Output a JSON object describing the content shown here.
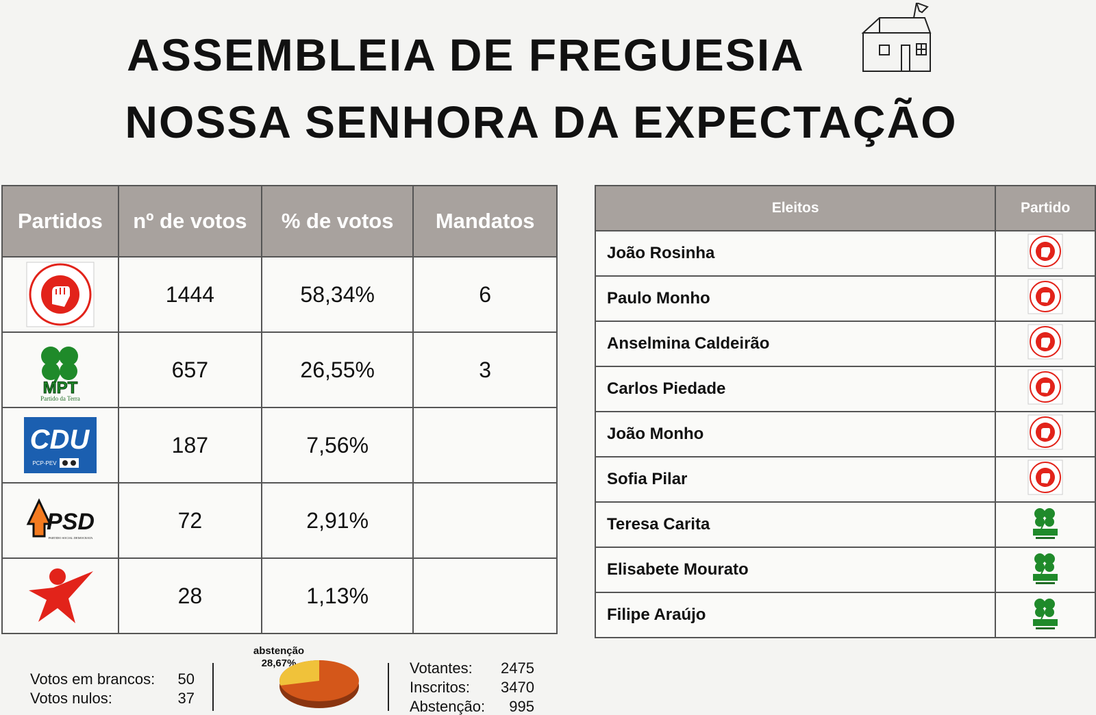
{
  "header": {
    "title_line1": "ASSEMBLEIA DE FREGUESIA",
    "title_line2": "NOSSA SENHORA DA EXPECTAÇÃO"
  },
  "results": {
    "headers": [
      "Partidos",
      "nº de votos",
      "% de votos",
      "Mandatos"
    ],
    "rows": [
      {
        "party_icon": "ps-fist-logo",
        "votes": "1444",
        "percent": "58,34%",
        "mandates": "6"
      },
      {
        "party_icon": "mpt-clover-logo",
        "votes": "657",
        "percent": "26,55%",
        "mandates": "3",
        "logo_text": "MPT",
        "logo_sub": "Partido da Terra"
      },
      {
        "party_icon": "cdu-logo",
        "votes": "187",
        "percent": "7,56%",
        "mandates": "",
        "logo_text": "CDU",
        "logo_sub": "PCP-PEV"
      },
      {
        "party_icon": "psd-logo",
        "votes": "72",
        "percent": "2,91%",
        "mandates": "",
        "logo_text": "PSD",
        "logo_sub": "PARTIDO SOCIAL DEMOCRATA"
      },
      {
        "party_icon": "be-star-logo",
        "votes": "28",
        "percent": "1,13%",
        "mandates": ""
      }
    ]
  },
  "elected": {
    "headers": [
      "Eleitos",
      "Partido"
    ],
    "rows": [
      {
        "name": "João Rosinha",
        "party": "ps"
      },
      {
        "name": "Paulo Monho",
        "party": "ps"
      },
      {
        "name": "Anselmina Caldeirão",
        "party": "ps"
      },
      {
        "name": "Carlos Piedade",
        "party": "ps"
      },
      {
        "name": "João Monho",
        "party": "ps"
      },
      {
        "name": "Sofia Pilar",
        "party": "ps"
      },
      {
        "name": "Teresa Carita",
        "party": "mpt"
      },
      {
        "name": "Elisabete Mourato",
        "party": "mpt"
      },
      {
        "name": "Filipe Araújo",
        "party": "mpt"
      }
    ]
  },
  "footer": {
    "brancos_label": "Votos em brancos:",
    "brancos_value": "50",
    "nulos_label": "Votos nulos:",
    "nulos_value": "37",
    "abstencao_pie_label": "abstenção",
    "abstencao_pie_value": "28,67%",
    "abstencao_fraction": 0.2867,
    "votantes_label": "Votantes:",
    "votantes_value": "2475",
    "inscritos_label": "Inscritos:",
    "inscritos_value": "3470",
    "abstencao_label": "Abstenção:",
    "abstencao_value": "995"
  },
  "colors": {
    "header_bg": "#a8a29e",
    "ps_red": "#e2231a",
    "mpt_green": "#1f8a2a",
    "cdu_blue": "#1b5fb0",
    "psd_orange": "#f47b20",
    "pie_orange": "#d4571a",
    "pie_yellow": "#f0c23a"
  }
}
